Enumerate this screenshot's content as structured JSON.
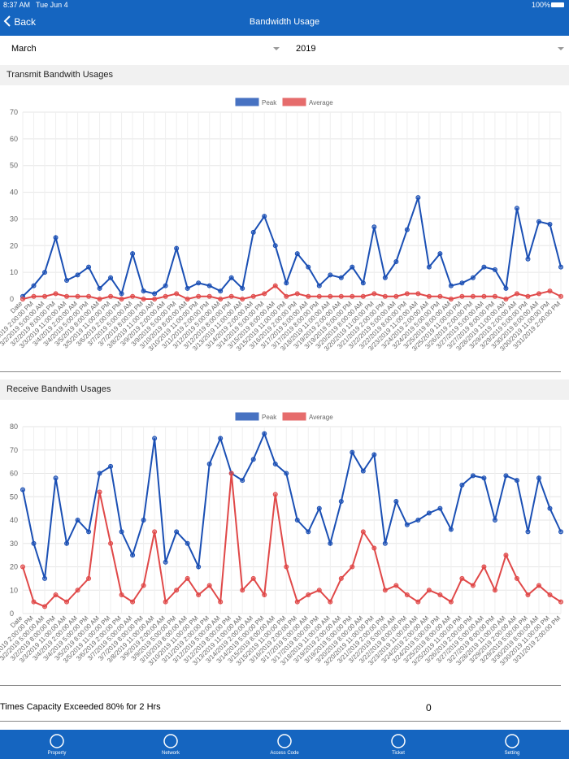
{
  "status_bar": {
    "time": "8:37 AM",
    "date": "Tue Jun 4",
    "battery": "100%"
  },
  "nav": {
    "back": "Back",
    "title": "Bandwidth Usage"
  },
  "filters": {
    "month": "March",
    "year": "2019"
  },
  "chart_data": [
    {
      "type": "line",
      "title": "Transmit Bandwith Usages",
      "categories": [
        "Date",
        "3/1/2019 2:00:00 PM",
        "3/2/2019 5:00:00 AM",
        "3/2/2019 8:00:00 PM",
        "3/3/2019 11:00:00 AM",
        "3/4/2019 2:00:00 AM",
        "3/4/2019 5:00:00 PM",
        "3/5/2019 8:00:00 AM",
        "3/5/2019 11:00:00 PM",
        "3/6/2019 2:00:00 PM",
        "3/7/2019 5:00:00 AM",
        "3/7/2019 8:00:00 PM",
        "3/8/2019 11:00:00 AM",
        "3/9/2019 2:00:00 AM",
        "3/9/2019 5:00:00 PM",
        "3/10/2019 8:00:00 AM",
        "3/10/2019 11:00:00 PM",
        "3/11/2019 2:00:00 PM",
        "3/12/2019 5:00:00 AM",
        "3/12/2019 8:00:00 PM",
        "3/13/2019 11:00:00 AM",
        "3/14/2019 2:00:00 AM",
        "3/14/2019 5:00:00 PM",
        "3/15/2019 8:00:00 AM",
        "3/15/2019 11:00:00 PM",
        "3/16/2019 2:00:00 PM",
        "3/17/2019 5:00:00 AM",
        "3/17/2019 8:00:00 PM",
        "3/18/2019 11:00:00 AM",
        "3/19/2019 2:00:00 AM",
        "3/19/2019 5:00:00 PM",
        "3/20/2019 8:00:00 AM",
        "3/20/2019 11:00:00 PM",
        "3/21/2019 2:00:00 PM",
        "3/22/2019 5:00:00 AM",
        "3/22/2019 8:00:00 PM",
        "3/23/2019 11:00:00 AM",
        "3/24/2019 2:00:00 AM",
        "3/24/2019 5:00:00 PM",
        "3/25/2019 8:00:00 AM",
        "3/25/2019 11:00:00 PM",
        "3/26/2019 2:00:00 PM",
        "3/27/2019 5:00:00 AM",
        "3/27/2019 8:00:00 PM",
        "3/28/2019 11:00:00 AM",
        "3/29/2019 2:00:00 AM",
        "3/29/2019 5:00:00 PM",
        "3/30/2019 8:00:00 AM",
        "3/30/2019 11:00:00 PM",
        "3/31/2019 2:00:00 PM"
      ],
      "series": [
        {
          "name": "Peak",
          "color": "#1a4fb4",
          "values": [
            1,
            5,
            10,
            23,
            7,
            9,
            12,
            4,
            8,
            2,
            17,
            3,
            2,
            5,
            19,
            4,
            6,
            5,
            3,
            8,
            4,
            25,
            31,
            20,
            6,
            17,
            12,
            5,
            9,
            8,
            12,
            6,
            27,
            8,
            14,
            26,
            38,
            12,
            17,
            5,
            6,
            8,
            12,
            11,
            4,
            34,
            15,
            29,
            28,
            12
          ]
        },
        {
          "name": "Average",
          "color": "#e04848",
          "values": [
            0,
            1,
            1,
            2,
            1,
            1,
            1,
            0,
            1,
            0,
            1,
            0,
            0,
            1,
            2,
            0,
            1,
            1,
            0,
            1,
            0,
            1,
            2,
            5,
            1,
            2,
            1,
            1,
            1,
            1,
            1,
            1,
            2,
            1,
            1,
            2,
            2,
            1,
            1,
            0,
            1,
            1,
            1,
            1,
            0,
            2,
            1,
            2,
            3,
            1
          ]
        }
      ],
      "ylim": [
        0,
        70
      ],
      "yticks": [
        0,
        10,
        20,
        30,
        40,
        50,
        60,
        70
      ],
      "grid": true,
      "legend": "top"
    },
    {
      "type": "line",
      "title": "Receive Bandwith Usages",
      "categories": [
        "Date",
        "3/1/2019 2:00:00 PM",
        "3/2/2019 5:00:00 AM",
        "3/2/2019 8:00:00 PM",
        "3/3/2019 11:00:00 AM",
        "3/4/2019 2:00:00 AM",
        "3/4/2019 5:00:00 PM",
        "3/5/2019 8:00:00 AM",
        "3/5/2019 11:00:00 PM",
        "3/6/2019 2:00:00 PM",
        "3/7/2019 5:00:00 AM",
        "3/7/2019 8:00:00 PM",
        "3/8/2019 11:00:00 AM",
        "3/9/2019 2:00:00 AM",
        "3/9/2019 5:00:00 PM",
        "3/10/2019 8:00:00 AM",
        "3/10/2019 11:00:00 PM",
        "3/11/2019 2:00:00 PM",
        "3/12/2019 5:00:00 AM",
        "3/12/2019 8:00:00 PM",
        "3/13/2019 11:00:00 AM",
        "3/14/2019 2:00:00 AM",
        "3/14/2019 5:00:00 PM",
        "3/15/2019 8:00:00 AM",
        "3/15/2019 11:00:00 PM",
        "3/16/2019 2:00:00 PM",
        "3/17/2019 5:00:00 AM",
        "3/17/2019 8:00:00 PM",
        "3/18/2019 11:00:00 AM",
        "3/19/2019 2:00:00 AM",
        "3/19/2019 5:00:00 PM",
        "3/20/2019 8:00:00 AM",
        "3/20/2019 11:00:00 PM",
        "3/21/2019 2:00:00 PM",
        "3/22/2019 5:00:00 AM",
        "3/22/2019 8:00:00 PM",
        "3/23/2019 11:00:00 AM",
        "3/24/2019 2:00:00 AM",
        "3/24/2019 5:00:00 PM",
        "3/25/2019 8:00:00 AM",
        "3/25/2019 11:00:00 PM",
        "3/26/2019 2:00:00 PM",
        "3/27/2019 5:00:00 AM",
        "3/27/2019 8:00:00 PM",
        "3/28/2019 11:00:00 AM",
        "3/29/2019 2:00:00 AM",
        "3/29/2019 5:00:00 PM",
        "3/30/2019 8:00:00 AM",
        "3/30/2019 11:00:00 PM",
        "3/31/2019 2:00:00 PM"
      ],
      "series": [
        {
          "name": "Peak",
          "color": "#1a4fb4",
          "values": [
            53,
            30,
            15,
            58,
            30,
            40,
            35,
            60,
            63,
            35,
            25,
            40,
            75,
            22,
            35,
            30,
            20,
            64,
            75,
            60,
            57,
            66,
            77,
            64,
            60,
            40,
            35,
            45,
            30,
            48,
            69,
            61,
            68,
            30,
            48,
            38,
            40,
            43,
            45,
            36,
            55,
            59,
            58,
            40,
            59,
            57,
            35,
            58,
            45,
            35
          ]
        },
        {
          "name": "Average",
          "color": "#e04848",
          "values": [
            20,
            5,
            3,
            8,
            5,
            10,
            15,
            52,
            30,
            8,
            5,
            12,
            35,
            5,
            10,
            15,
            8,
            12,
            5,
            60,
            10,
            15,
            8,
            51,
            20,
            5,
            8,
            10,
            5,
            15,
            20,
            35,
            28,
            10,
            12,
            8,
            5,
            10,
            8,
            5,
            15,
            12,
            20,
            10,
            25,
            15,
            8,
            12,
            8,
            5
          ]
        }
      ],
      "ylim": [
        0,
        80
      ],
      "yticks": [
        0,
        10,
        20,
        30,
        40,
        50,
        60,
        70,
        80
      ],
      "grid": true,
      "legend": "top"
    }
  ],
  "summary": {
    "label": "Times Capacity Exceeded 80% for 2 Hrs",
    "value": 0
  },
  "tabs": [
    "Property",
    "Network",
    "Access Code",
    "Ticket",
    "Setting"
  ]
}
